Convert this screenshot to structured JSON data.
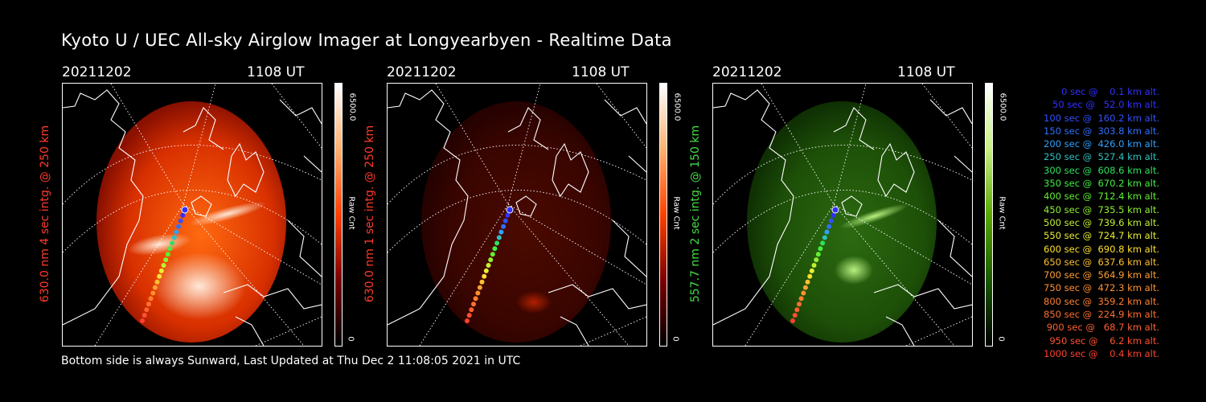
{
  "title": "Kyoto U / UEC All-sky Airglow Imager at Longyearbyen - Realtime Data",
  "footer": "Bottom side is always Sunward, Last Updated at Thu Dec  2 11:08:05 2021 in UTC",
  "panels": [
    {
      "date": "20211202",
      "time": "1108 UT",
      "side_label": "630.0 nm 4 sec intg. @ 250 km",
      "side_color": "#ff3a2a",
      "colorbar_max": "6500.0",
      "colorbar_min": "0",
      "colorbar_unit": "Raw Cnt",
      "palette": "red-bright",
      "colorbar_colors": [
        "#000000",
        "#7a0000",
        "#ff4000",
        "#ffb070",
        "#ffffff"
      ]
    },
    {
      "date": "20211202",
      "time": "1108 UT",
      "side_label": "630.0 nm 1 sec intg. @ 250 km",
      "side_color": "#ff3a2a",
      "colorbar_max": "6500.0",
      "colorbar_min": "0",
      "colorbar_unit": "Raw Cnt",
      "palette": "red-dim",
      "colorbar_colors": [
        "#000000",
        "#7a0000",
        "#ff4000",
        "#ffb070",
        "#ffffff"
      ]
    },
    {
      "date": "20211202",
      "time": "1108 UT",
      "side_label": "557.7 nm 2 sec intg. @ 150 km",
      "side_color": "#44dd44",
      "colorbar_max": "6500.0",
      "colorbar_min": "0",
      "colorbar_unit": "Raw Cnt",
      "palette": "green",
      "colorbar_colors": [
        "#000000",
        "#1a5a00",
        "#5aa800",
        "#c8f080",
        "#ffffff"
      ]
    }
  ],
  "legend": [
    {
      "text": "0 sec @    0.1 km alt.",
      "color": "#3030ff"
    },
    {
      "text": "50 sec @   52.0 km alt.",
      "color": "#3030ff"
    },
    {
      "text": "100 sec @  160.2 km alt.",
      "color": "#3050ff"
    },
    {
      "text": "150 sec @  303.8 km alt.",
      "color": "#3070ff"
    },
    {
      "text": "200 sec @  426.0 km alt.",
      "color": "#30a0ff"
    },
    {
      "text": "250 sec @  527.4 km alt.",
      "color": "#30c0c0"
    },
    {
      "text": "300 sec @  608.6 km alt.",
      "color": "#30e060"
    },
    {
      "text": "350 sec @  670.2 km alt.",
      "color": "#40f040"
    },
    {
      "text": "400 sec @  712.4 km alt.",
      "color": "#60f030"
    },
    {
      "text": "450 sec @  735.5 km alt.",
      "color": "#90f030"
    },
    {
      "text": "500 sec @  739.6 km alt.",
      "color": "#c0f030"
    },
    {
      "text": "550 sec @  724.7 km alt.",
      "color": "#e8f030"
    },
    {
      "text": "600 sec @  690.8 km alt.",
      "color": "#ffe030"
    },
    {
      "text": "650 sec @  637.6 km alt.",
      "color": "#ffc030"
    },
    {
      "text": "700 sec @  564.9 km alt.",
      "color": "#ffa030"
    },
    {
      "text": "750 sec @  472.3 km alt.",
      "color": "#ff9030"
    },
    {
      "text": "800 sec @  359.2 km alt.",
      "color": "#ff8030"
    },
    {
      "text": "850 sec @  224.9 km alt.",
      "color": "#ff7030"
    },
    {
      "text": "900 sec @   68.7 km alt.",
      "color": "#ff6030"
    },
    {
      "text": "950 sec @    6.2 km alt.",
      "color": "#ff5030"
    },
    {
      "text": "1000 sec @    0.4 km alt.",
      "color": "#ff4030"
    }
  ]
}
